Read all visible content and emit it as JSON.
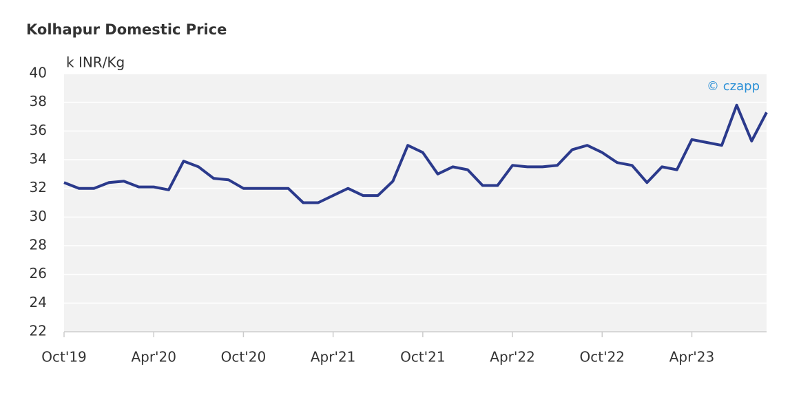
{
  "chart_data": {
    "type": "line",
    "title": "Kolhapur Domestic Price",
    "y_label": "k INR/Kg",
    "watermark": "© czapp",
    "x": [
      "2019-10",
      "2019-11",
      "2019-12",
      "2020-01",
      "2020-02",
      "2020-03",
      "2020-04",
      "2020-05",
      "2020-06",
      "2020-07",
      "2020-08",
      "2020-09",
      "2020-10",
      "2020-11",
      "2020-12",
      "2021-01",
      "2021-02",
      "2021-03",
      "2021-04",
      "2021-05",
      "2021-06",
      "2021-07",
      "2021-08",
      "2021-09",
      "2021-10",
      "2021-11",
      "2021-12",
      "2022-01",
      "2022-02",
      "2022-03",
      "2022-04",
      "2022-05",
      "2022-06",
      "2022-07",
      "2022-08",
      "2022-09",
      "2022-10",
      "2022-11",
      "2022-12",
      "2023-01",
      "2023-02",
      "2023-03",
      "2023-04",
      "2023-05",
      "2023-06",
      "2023-07",
      "2023-08",
      "2023-09"
    ],
    "series": [
      {
        "name": "Kolhapur Domestic Price",
        "color": "#2b3a8c",
        "values": [
          32.4,
          32.0,
          32.0,
          32.4,
          32.5,
          32.1,
          32.1,
          31.9,
          33.9,
          33.5,
          32.7,
          32.6,
          32.0,
          32.0,
          32.0,
          32.0,
          31.0,
          31.0,
          31.5,
          32.0,
          31.5,
          31.5,
          32.5,
          35.0,
          34.5,
          33.0,
          33.5,
          33.3,
          32.2,
          32.2,
          33.6,
          33.5,
          33.5,
          33.6,
          34.7,
          35.0,
          34.5,
          33.8,
          33.6,
          32.4,
          33.5,
          33.3,
          35.4,
          35.2,
          35.0,
          37.8,
          35.3,
          37.3
        ]
      }
    ],
    "xlim": [
      "2019-10",
      "2023-09"
    ],
    "xticks": [
      {
        "value": "2019-10",
        "label": "Oct'19"
      },
      {
        "value": "2020-04",
        "label": "Apr'20"
      },
      {
        "value": "2020-10",
        "label": "Oct'20"
      },
      {
        "value": "2021-04",
        "label": "Apr'21"
      },
      {
        "value": "2021-10",
        "label": "Oct'21"
      },
      {
        "value": "2022-04",
        "label": "Apr'22"
      },
      {
        "value": "2022-10",
        "label": "Oct'22"
      },
      {
        "value": "2023-04",
        "label": "Apr'23"
      }
    ],
    "ylim": [
      22,
      40
    ],
    "yticks": [
      22,
      24,
      26,
      28,
      30,
      32,
      34,
      36,
      38,
      40
    ],
    "grid": true
  }
}
